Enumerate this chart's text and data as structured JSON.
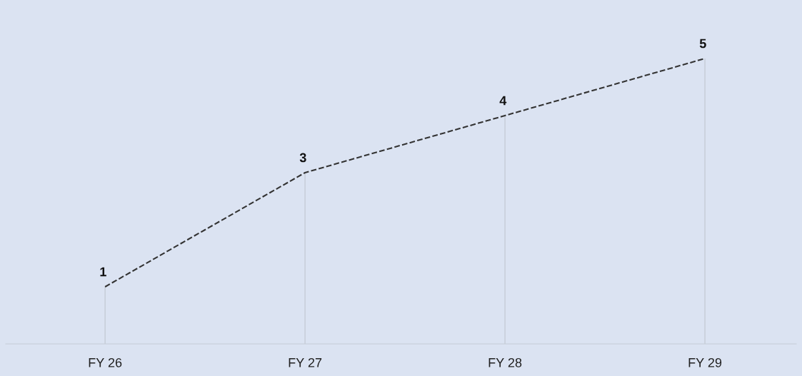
{
  "chart_data": {
    "type": "line",
    "categories": [
      "FY 26",
      "FY 27",
      "FY 28",
      "FY 29"
    ],
    "series": [
      {
        "color": "#333333",
        "values": [
          1,
          3,
          4,
          5
        ]
      }
    ],
    "data_labels": true,
    "line_style": "dashed",
    "marker": "none",
    "grid": "x",
    "legend": false,
    "tick_labels": "x"
  }
}
